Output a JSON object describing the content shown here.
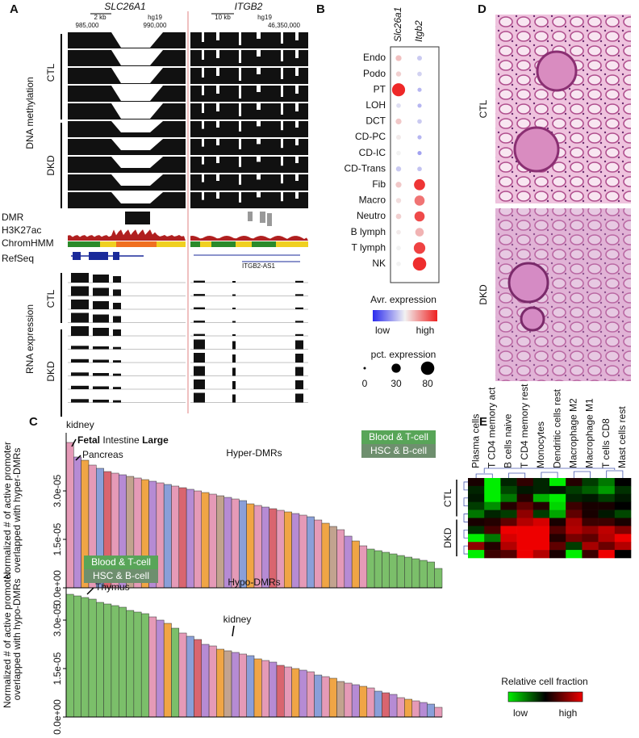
{
  "panel_labels": [
    "A",
    "B",
    "C",
    "D",
    "E"
  ],
  "genome": {
    "genes": [
      "SLC26A1",
      "ITGB2"
    ],
    "scales": [
      {
        "bar": "2 kb",
        "assembly": "hg19",
        "coords": [
          "985,000",
          "990,000"
        ]
      },
      {
        "bar": "10 kb",
        "assembly": "hg19",
        "coords": [
          "46,350,000"
        ]
      }
    ],
    "methylation": {
      "label": "DNA methylation",
      "groups": [
        "CTL",
        "DKD"
      ]
    },
    "tracks": [
      "DMR",
      "H3K27ac",
      "ChromHMM",
      "RefSeq"
    ],
    "transcript": "ITGB2-AS1",
    "rna": {
      "label": "RNA expression",
      "groups": [
        "CTL",
        "DKD"
      ]
    }
  },
  "histology": {
    "labels": [
      "CTL",
      "DKD"
    ]
  },
  "chart_data": [
    {
      "type": "dot",
      "categories": [
        "Endo",
        "Podo",
        "PT",
        "LOH",
        "DCT",
        "CD-PC",
        "CD-IC",
        "CD-Trans",
        "Fib",
        "Macro",
        "Neutro",
        "B lymph",
        "T lymph",
        "NK"
      ],
      "series": [
        {
          "name": "Slc26a1",
          "values": [
            8,
            5,
            75,
            3,
            8,
            4,
            3,
            5,
            8,
            5,
            6,
            3,
            3,
            3
          ],
          "expression": [
            0.62,
            0.58,
            0.98,
            0.45,
            0.6,
            0.52,
            0.5,
            0.4,
            0.6,
            0.55,
            0.58,
            0.52,
            0.5,
            0.5
          ]
        },
        {
          "name": "Itgb2",
          "values": [
            4,
            3,
            2,
            2,
            3,
            2,
            2,
            3,
            50,
            40,
            40,
            25,
            55,
            80
          ],
          "expression": [
            0.4,
            0.42,
            0.35,
            0.35,
            0.4,
            0.35,
            0.3,
            0.38,
            0.95,
            0.8,
            0.9,
            0.65,
            0.92,
            0.97
          ]
        }
      ],
      "explim": [
        0,
        1
      ],
      "colors": [
        "#2a2aee",
        "#f2f2f2",
        "#ee2020"
      ],
      "color_title": "Avr. expression",
      "color_labels": [
        "low",
        "high"
      ],
      "size_title": "pct. expression",
      "size_ticks": [
        0,
        30,
        80
      ]
    },
    {
      "type": "bar",
      "title": "Hyper-DMRs",
      "ylabel": [
        "Normalized # of active promoter",
        "overlapped with hyper-DMRs"
      ],
      "values": [
        4.5e-05,
        4.05e-05,
        3.95e-05,
        3.8e-05,
        3.7e-05,
        3.6e-05,
        3.55e-05,
        3.5e-05,
        3.45e-05,
        3.4e-05,
        3.35e-05,
        3.3e-05,
        3.25e-05,
        3.2e-05,
        3.15e-05,
        3.1e-05,
        3.05e-05,
        3e-05,
        2.95e-05,
        2.9e-05,
        2.85e-05,
        2.8e-05,
        2.75e-05,
        2.7e-05,
        2.6e-05,
        2.55e-05,
        2.5e-05,
        2.45e-05,
        2.4e-05,
        2.35e-05,
        2.3e-05,
        2.25e-05,
        2.2e-05,
        2.1e-05,
        2e-05,
        1.9e-05,
        1.8e-05,
        1.6e-05,
        1.45e-05,
        1.3e-05,
        1.2e-05,
        1.15e-05,
        1.1e-05,
        1.05e-05,
        1e-05,
        9.5e-06,
        9e-06,
        8.5e-06,
        8e-06,
        6e-06
      ],
      "colors": [
        "#e59ab7",
        "#b68bd4",
        "#f0a545",
        "#e59ab7",
        "#8a9fd9",
        "#d9656f",
        "#e59ab7",
        "#b68bd4",
        "#c2a38f",
        "#e59ab7",
        "#f0a545",
        "#b68bd4",
        "#e59ab7",
        "#8a9fd9",
        "#e59ab7",
        "#d9656f",
        "#b68bd4",
        "#e59ab7",
        "#f0a545",
        "#e59ab7",
        "#c2a38f",
        "#b68bd4",
        "#e59ab7",
        "#8a9fd9",
        "#f0a545",
        "#e59ab7",
        "#b68bd4",
        "#d9656f",
        "#e59ab7",
        "#f0a545",
        "#b68bd4",
        "#e59ab7",
        "#8a9fd9",
        "#e59ab7",
        "#f0a545",
        "#c2a38f",
        "#e59ab7",
        "#b68bd4",
        "#f0a545",
        "#e59ab7",
        "#7bbf6a",
        "#7bbf6a",
        "#7bbf6a",
        "#7bbf6a",
        "#7bbf6a",
        "#7bbf6a",
        "#7bbf6a",
        "#7bbf6a",
        "#7bbf6a",
        "#7bbf6a"
      ],
      "ylim": [
        0,
        4.8e-05
      ],
      "yticks": [
        {
          "value": 0,
          "label": "0.0e+00"
        },
        {
          "value": 1.5e-05,
          "label": "1.5e-05"
        },
        {
          "value": 3e-05,
          "label": "3.0e-05"
        }
      ],
      "annotations": [
        "kidney",
        "Fetal",
        "Intestine",
        "Large",
        "Pancreas"
      ],
      "group_labels": [
        "Blood & T-cell",
        "HSC & B-cell"
      ]
    },
    {
      "type": "bar",
      "title": "Hypo-DMRs",
      "ylabel": [
        "Normalized # of active promoter",
        "overlapped with hypo-DMRs"
      ],
      "values": [
        3.8e-05,
        3.75e-05,
        3.7e-05,
        3.65e-05,
        3.55e-05,
        3.5e-05,
        3.45e-05,
        3.4e-05,
        3.3e-05,
        3.25e-05,
        3.2e-05,
        3.1e-05,
        3e-05,
        2.9e-05,
        2.75e-05,
        2.6e-05,
        2.5e-05,
        2.4e-05,
        2.25e-05,
        2.2e-05,
        2.1e-05,
        2.05e-05,
        2e-05,
        1.95e-05,
        1.9e-05,
        1.8e-05,
        1.75e-05,
        1.7e-05,
        1.6e-05,
        1.55e-05,
        1.5e-05,
        1.45e-05,
        1.4e-05,
        1.3e-05,
        1.25e-05,
        1.2e-05,
        1.1e-05,
        1.05e-05,
        1e-05,
        9.5e-06,
        9e-06,
        8e-06,
        7.5e-06,
        7e-06,
        6e-06,
        5.5e-06,
        5e-06,
        4.5e-06,
        4e-06,
        3e-06
      ],
      "colors": [
        "#7bbf6a",
        "#7bbf6a",
        "#7bbf6a",
        "#7bbf6a",
        "#7bbf6a",
        "#7bbf6a",
        "#7bbf6a",
        "#7bbf6a",
        "#7bbf6a",
        "#7bbf6a",
        "#7bbf6a",
        "#e59ab7",
        "#b68bd4",
        "#f0a545",
        "#7bbf6a",
        "#e59ab7",
        "#8a9fd9",
        "#d9656f",
        "#b68bd4",
        "#e59ab7",
        "#f0a545",
        "#c2a38f",
        "#b68bd4",
        "#e59ab7",
        "#8a9fd9",
        "#f0a545",
        "#e59ab7",
        "#b68bd4",
        "#d9656f",
        "#e59ab7",
        "#f0a545",
        "#b68bd4",
        "#e59ab7",
        "#8a9fd9",
        "#e59ab7",
        "#f0a545",
        "#c2a38f",
        "#e59ab7",
        "#b68bd4",
        "#f0a545",
        "#e59ab7",
        "#8a9fd9",
        "#d9656f",
        "#b68bd4",
        "#e59ab7",
        "#f0a545",
        "#e59ab7",
        "#b68bd4",
        "#8a9fd9",
        "#e59ab7"
      ],
      "ylim": [
        0,
        4.8e-05
      ],
      "yticks": [
        {
          "value": 0,
          "label": "0.0e+00"
        },
        {
          "value": 1.5e-05,
          "label": "1.5e-05"
        },
        {
          "value": 3e-05,
          "label": "3.0e-05"
        }
      ],
      "annotations": [
        "Thymus",
        "kidney"
      ],
      "group_labels": [
        "Blood & T-cell",
        "HSC & B-cell"
      ]
    },
    {
      "type": "heatmap",
      "columns": [
        "Plasma cells",
        "T CD4 memory act",
        "B cells naive",
        "T CD4 memory rest",
        "Monocytes",
        "Dendritic cells rest",
        "Macrophage M2",
        "Macrophage M1",
        "T cells CD8",
        "Mast cells rest"
      ],
      "row_groups": [
        "CTL",
        "DKD"
      ],
      "values": [
        [
          0.2,
          -2,
          -0.3,
          0.4,
          -0.3,
          -2,
          0.3,
          -0.5,
          -1,
          0
        ],
        [
          -0.3,
          -2,
          -0.6,
          -0.2,
          -0.3,
          -0.2,
          -0.5,
          -0.8,
          -1.3,
          -0.4
        ],
        [
          -0.2,
          -2,
          -1,
          0.3,
          -1.5,
          -2,
          -0.3,
          -0.2,
          -0.5,
          -0.2
        ],
        [
          -0.5,
          -1.2,
          0.3,
          0.8,
          0.3,
          -1.8,
          0.5,
          0.2,
          0.2,
          0
        ],
        [
          -1,
          -0.3,
          -0.5,
          1.2,
          -0.5,
          -1.4,
          0.8,
          0.2,
          -0.2,
          -0.6
        ],
        [
          0.2,
          0.3,
          0.8,
          1.5,
          1.8,
          0.2,
          1.4,
          0.5,
          0.5,
          0.2
        ],
        [
          -0.4,
          0.6,
          2,
          2,
          2,
          0.7,
          1.5,
          1.2,
          1.6,
          1.1
        ],
        [
          -2,
          -1,
          1.8,
          2,
          2,
          0.3,
          1,
          0.8,
          1.5,
          2
        ],
        [
          1.2,
          0.3,
          1.5,
          2,
          2,
          0.8,
          -0.5,
          1.4,
          0.9,
          1.5
        ],
        [
          -2,
          0.5,
          0.7,
          2,
          1.5,
          0.2,
          -2,
          0.5,
          2,
          0
        ]
      ],
      "zlim": [
        -2,
        2
      ],
      "colors": [
        "#00ee00",
        "#000000",
        "#ee0000"
      ],
      "colorbar_title": "Relative cell fraction",
      "colorbar_labels": [
        "low",
        "high"
      ]
    }
  ]
}
